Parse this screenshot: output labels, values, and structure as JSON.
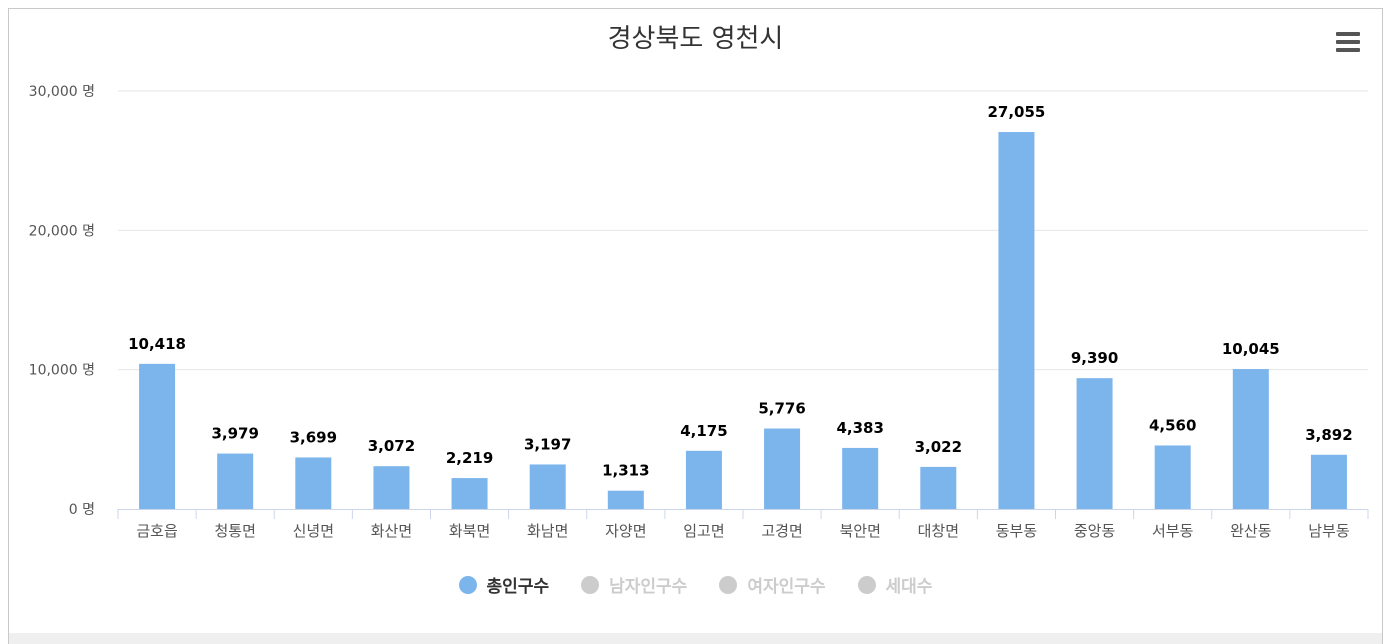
{
  "title": "경상북도 영천시",
  "menu_icon": "hamburger-menu-icon",
  "colors": {
    "bar": "#7cb5ec",
    "inactive": "#cccccc",
    "active_text": "#333333",
    "inactive_text": "#cccccc",
    "grid": "#e6e6e6",
    "axis_text": "#555555"
  },
  "legend": [
    {
      "label": "총인구수",
      "active": true
    },
    {
      "label": "남자인구수",
      "active": false
    },
    {
      "label": "여자인구수",
      "active": false
    },
    {
      "label": "세대수",
      "active": false
    }
  ],
  "chart_data": {
    "type": "bar",
    "title": "경상북도 영천시",
    "categories": [
      "금호읍",
      "청통면",
      "신녕면",
      "화산면",
      "화북면",
      "화남면",
      "자양면",
      "임고면",
      "고경면",
      "북안면",
      "대창면",
      "동부동",
      "중앙동",
      "서부동",
      "완산동",
      "남부동"
    ],
    "series": [
      {
        "name": "총인구수",
        "values": [
          10418,
          3979,
          3699,
          3072,
          2219,
          3197,
          1313,
          4175,
          5776,
          4383,
          3022,
          27055,
          9390,
          4560,
          10045,
          3892
        ]
      }
    ],
    "data_labels": [
      "10,418",
      "3,979",
      "3,699",
      "3,072",
      "2,219",
      "3,197",
      "1,313",
      "4,175",
      "5,776",
      "4,383",
      "3,022",
      "27,055",
      "9,390",
      "4,560",
      "10,045",
      "3,892"
    ],
    "ylim": [
      0,
      30000
    ],
    "yticks": [
      0,
      10000,
      20000,
      30000
    ],
    "ytick_labels": [
      "0 명",
      "10,000 명",
      "20,000 명",
      "30,000 명"
    ],
    "grid": true,
    "legend_position": "bottom"
  }
}
